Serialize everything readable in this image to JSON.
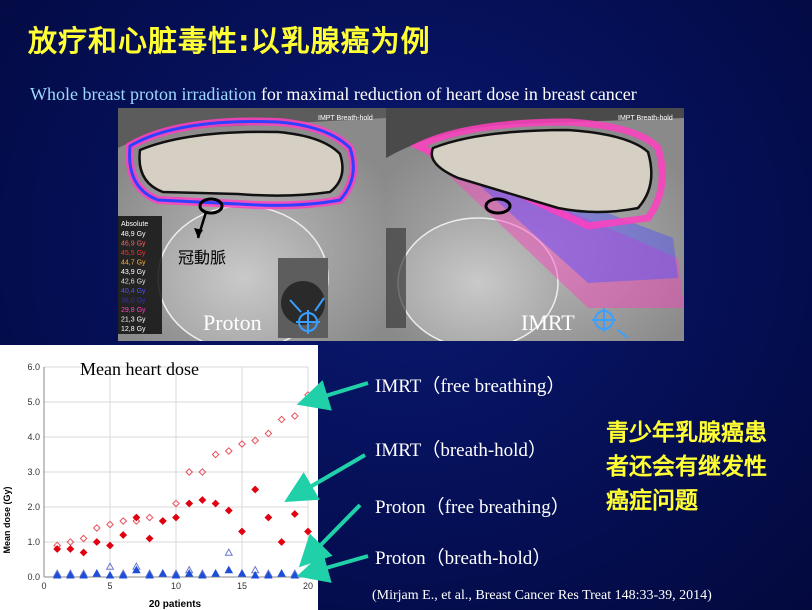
{
  "slide": {
    "title": "放疗和心脏毒性:以乳腺癌为例",
    "subtitle_highlight": "Whole breast proton irradiation",
    "subtitle_rest": " for maximal reduction of heart dose in breast cancer",
    "note_lines": [
      "青少年乳腺癌患",
      "者还会有继发性",
      "癌症问题"
    ],
    "citation": "(Mirjam E., et al., Breast Cancer Res Treat 148:33-39, 2014)"
  },
  "ct_images": {
    "left_tag": "IMPT Breath-hold",
    "right_tag": "IMPT Breath-hold",
    "left_label": "Proton",
    "right_label": "IMRT",
    "annotation": "冠動脈",
    "legend_header": "Absolute",
    "legend_values": [
      "48,9 Gy",
      "46,9 Gy",
      "45,5 Gy",
      "44,7 Gy",
      "43,9 Gy",
      "42,6 Gy",
      "40,4 Gy",
      "36,0 Gy",
      "29,8 Gy",
      "21,3 Gy",
      "12,8 Gy"
    ],
    "legend_colors": [
      "#ffffff",
      "#ff6060",
      "#ff3030",
      "#ffb040",
      "#ffffff",
      "#e0e0e0",
      "#5050ff",
      "#3030c0",
      "#ff40c0",
      "#ffffff",
      "#ffffff"
    ]
  },
  "series_labels": {
    "imrt_free": "IMRT（free breathing）",
    "imrt_hold": "IMRT（breath-hold）",
    "proton_free": "Proton（free breathing）",
    "proton_hold": "Proton（breath-hold）"
  },
  "chart_data": {
    "type": "scatter",
    "title": "Mean heart dose",
    "xlabel": "20 patients",
    "ylabel": "Mean dose (Gy)",
    "xlim": [
      0,
      20
    ],
    "ylim": [
      0,
      6
    ],
    "xticks": [
      0,
      5,
      10,
      15,
      20
    ],
    "yticks": [
      0.0,
      1.0,
      2.0,
      3.0,
      4.0,
      5.0,
      6.0
    ],
    "grid": true,
    "series": [
      {
        "color": "#e8505a",
        "marker": "diamond-open",
        "x": [
          1,
          2,
          3,
          4,
          5,
          6,
          7,
          8,
          9,
          10,
          11,
          12,
          13,
          14,
          15,
          16,
          17,
          18,
          19,
          20
        ],
        "y": [
          0.9,
          1.0,
          1.1,
          1.4,
          1.5,
          1.6,
          1.6,
          1.7,
          1.6,
          2.1,
          3.0,
          3.0,
          3.5,
          3.6,
          3.8,
          3.9,
          4.1,
          4.5,
          4.6,
          5.2
        ]
      },
      {
        "color": "#e00010",
        "marker": "diamond",
        "x": [
          1,
          2,
          3,
          4,
          5,
          6,
          7,
          8,
          9,
          10,
          11,
          12,
          13,
          14,
          15,
          16,
          17,
          18,
          19,
          20
        ],
        "y": [
          0.8,
          0.8,
          0.7,
          1.0,
          0.9,
          1.2,
          1.7,
          1.1,
          1.6,
          1.7,
          2.1,
          2.2,
          2.1,
          1.9,
          1.3,
          2.5,
          1.7,
          1.0,
          1.8,
          1.3
        ]
      },
      {
        "color": "#6a7ad0",
        "marker": "triangle-open",
        "x": [
          1,
          2,
          3,
          4,
          5,
          6,
          7,
          8,
          9,
          10,
          11,
          12,
          13,
          14,
          15,
          16,
          17,
          18,
          19,
          20
        ],
        "y": [
          0.1,
          0.1,
          0.1,
          0.1,
          0.3,
          0.1,
          0.3,
          0.1,
          0.1,
          0.1,
          0.2,
          0.1,
          0.1,
          0.7,
          0.1,
          0.2,
          0.1,
          0.1,
          0.1,
          0.1
        ]
      },
      {
        "color": "#1e4ed8",
        "marker": "triangle",
        "x": [
          1,
          2,
          3,
          4,
          5,
          6,
          7,
          8,
          9,
          10,
          11,
          12,
          13,
          14,
          15,
          16,
          17,
          18,
          19,
          20
        ],
        "y": [
          0.05,
          0.05,
          0.05,
          0.1,
          0.05,
          0.05,
          0.2,
          0.05,
          0.1,
          0.05,
          0.1,
          0.05,
          0.1,
          0.2,
          0.1,
          0.05,
          0.05,
          0.1,
          0.05,
          0.1
        ]
      }
    ]
  }
}
